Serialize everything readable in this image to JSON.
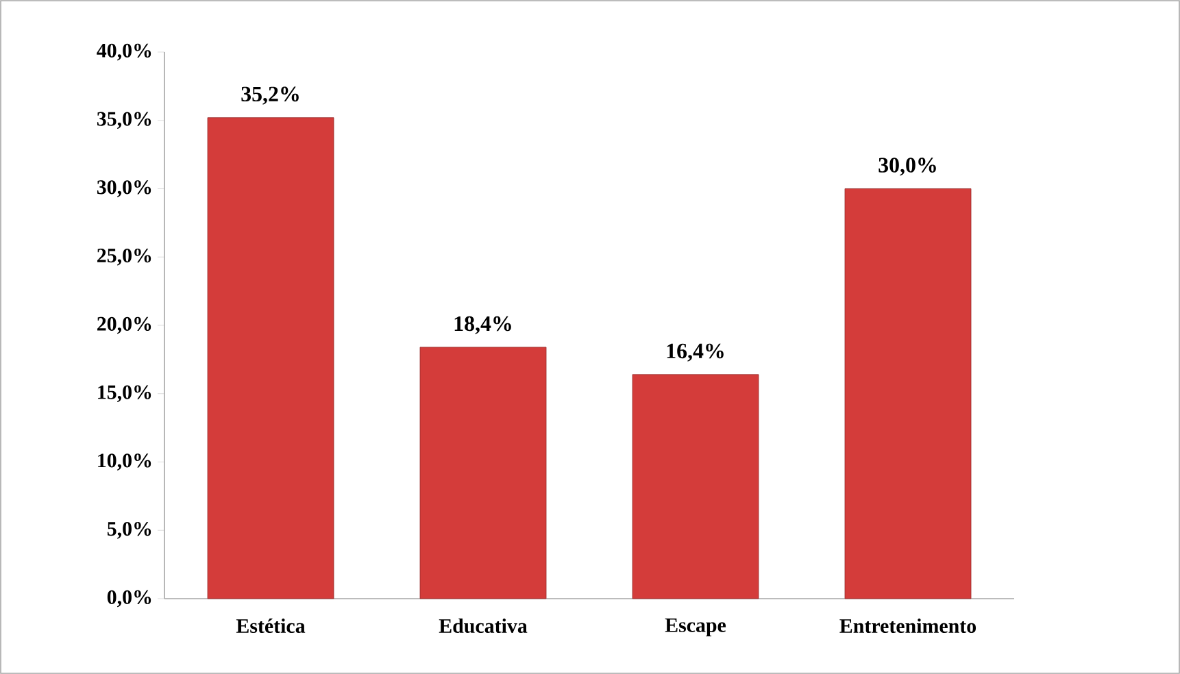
{
  "chart_data": {
    "type": "bar",
    "categories": [
      "Estética",
      "Educativa",
      "Escape",
      "Entretenimento"
    ],
    "values": [
      35.2,
      18.4,
      16.4,
      30.0
    ],
    "value_labels": [
      "35,2%",
      "18,4%",
      "16,4%",
      "30,0%"
    ],
    "color": "#d43c3a",
    "ylim": [
      0,
      40
    ],
    "yticks": [
      {
        "value": 0,
        "label": "0,0%"
      },
      {
        "value": 5,
        "label": "5,0%"
      },
      {
        "value": 10,
        "label": "10,0%"
      },
      {
        "value": 15,
        "label": "15,0%"
      },
      {
        "value": 20,
        "label": "20,0%"
      },
      {
        "value": 25,
        "label": "25,0%"
      },
      {
        "value": 30,
        "label": "30,0%"
      },
      {
        "value": 35,
        "label": "35,0%"
      },
      {
        "value": 40,
        "label": "40,0%"
      }
    ],
    "grid": false
  }
}
